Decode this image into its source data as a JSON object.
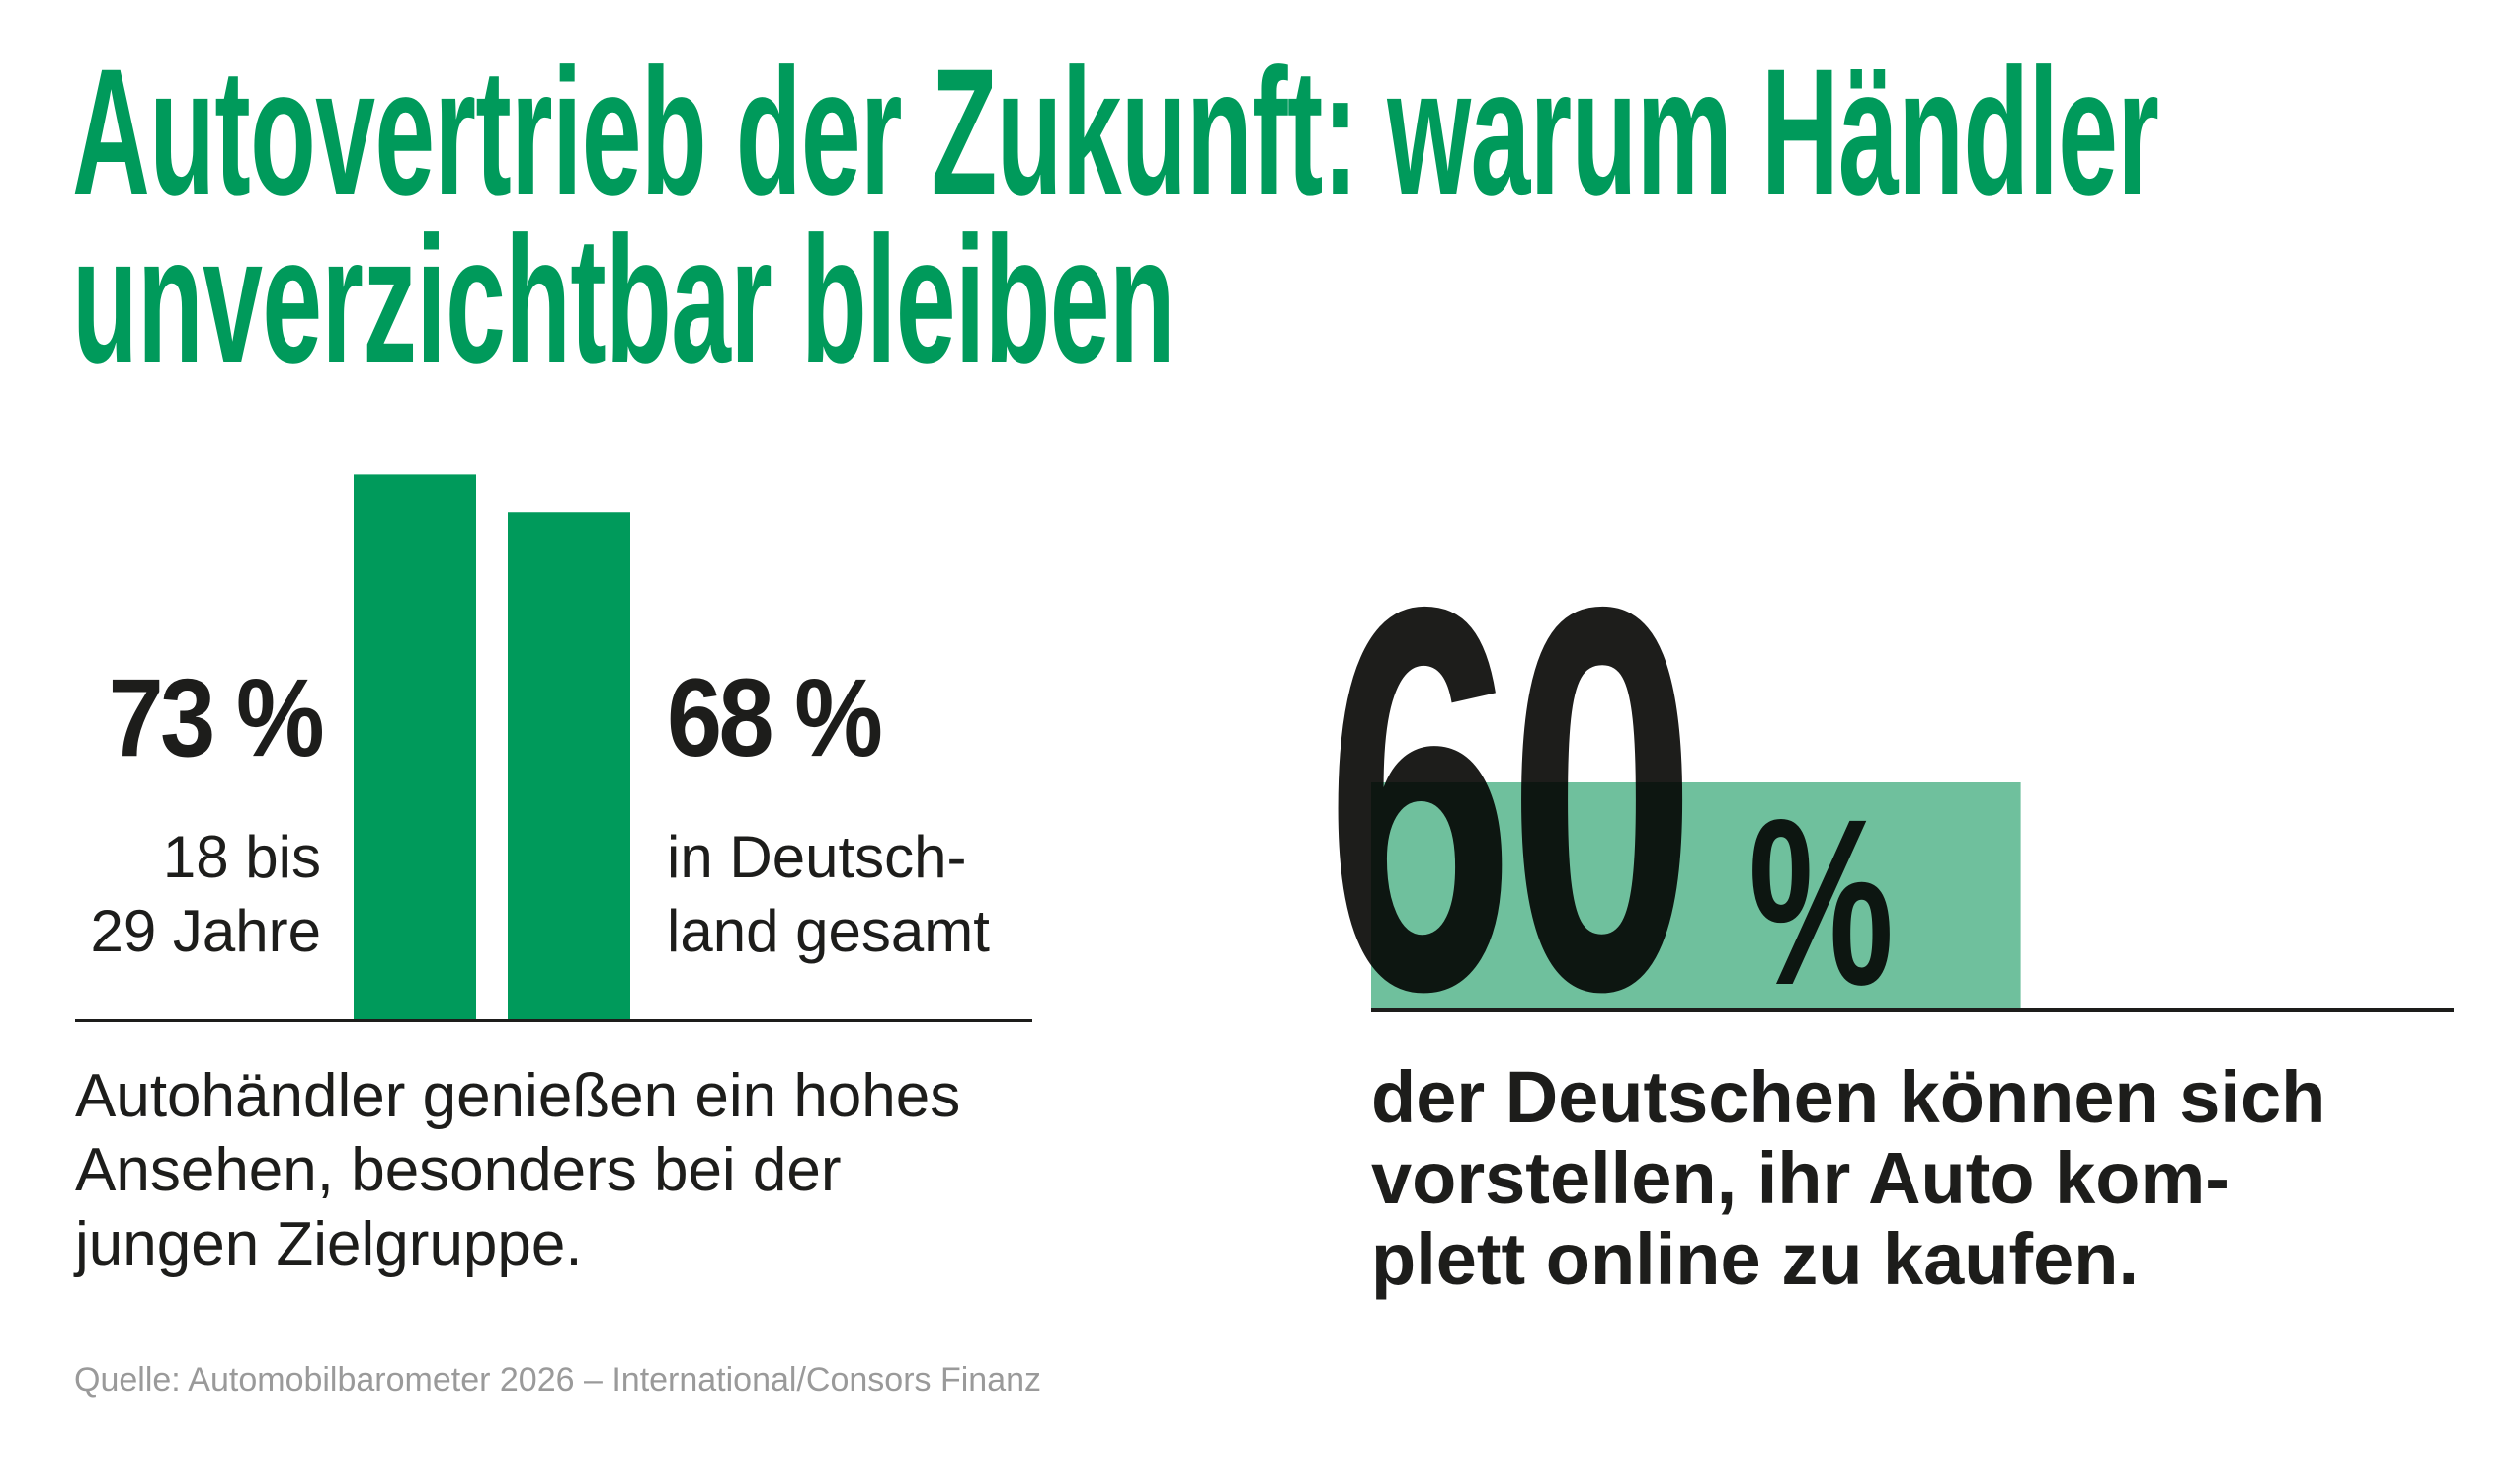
{
  "title": "Autovertrieb der Zukunft: warum Händler\nunverzichtbar bleiben",
  "source": "Quelle: Automobilbarometer 2026 – International/Consors Finanz",
  "chart_data": [
    {
      "type": "bar",
      "orientation": "vertical",
      "categories": [
        "18 bis\n29 Jahre",
        "in Deutsch-\nland gesamt"
      ],
      "values": [
        73,
        68
      ],
      "value_labels": [
        "73 %",
        "68 %"
      ],
      "color": "#009a5b",
      "caption": "Autohändler genießen ein hohes\nAnsehen, besonders bei der\njungen Zielgruppe."
    },
    {
      "type": "bar",
      "orientation": "horizontal",
      "values": [
        60
      ],
      "value_labels": [
        "60"
      ],
      "unit": "%",
      "color": "#4fb287",
      "caption": "der Deutschen können sich\nvorstellen, ihr Auto kom-\nplett online zu kaufen."
    }
  ]
}
